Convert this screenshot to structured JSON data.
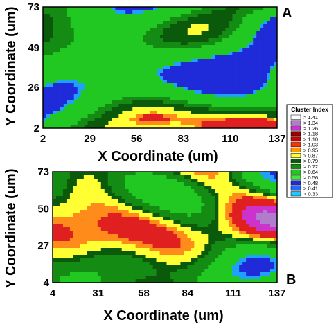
{
  "chart_data": [
    {
      "type": "heatmap",
      "panel_label": "A",
      "xlabel": "X Coordinate (um)",
      "ylabel": "Y Coordinate (um)",
      "xticks": [
        2,
        29,
        56,
        83,
        110,
        137
      ],
      "yticks": [
        2,
        26,
        49,
        73
      ],
      "xlim": [
        2,
        137
      ],
      "ylim": [
        2,
        73
      ],
      "palette": [
        "#1f2bd8",
        "#1fa0ff",
        "#22c822",
        "#148c14",
        "#0b5a0b",
        "#ffff33",
        "#ff8c1a",
        "#e02020"
      ],
      "weights": [
        0.18,
        0.03,
        0.47,
        0.12,
        0.1,
        0.05,
        0.02,
        0.03
      ]
    },
    {
      "type": "heatmap",
      "panel_label": "B",
      "xlabel": "X Coordinate (um)",
      "ylabel": "Y Coordinate (um)",
      "xticks": [
        4,
        31,
        58,
        84,
        111,
        137
      ],
      "yticks": [
        4,
        27,
        50,
        73
      ],
      "xlim": [
        4,
        137
      ],
      "ylim": [
        4,
        73
      ],
      "palette": [
        "#1f2bd8",
        "#1fa0ff",
        "#22c822",
        "#148c14",
        "#0b5a0b",
        "#ffff33",
        "#ff8c1a",
        "#e02020",
        "#cc33cc",
        "#b07dcc"
      ],
      "weights": [
        0.02,
        0.02,
        0.18,
        0.22,
        0.12,
        0.18,
        0.12,
        0.11,
        0.02,
        0.01
      ]
    }
  ],
  "legend": {
    "title": "Cluster Index",
    "entries": [
      {
        "label": "> 1.41",
        "color": "#ffffff"
      },
      {
        "label": "> 1.34",
        "color": "#b07dcc"
      },
      {
        "label": "> 1.26",
        "color": "#cc33cc"
      },
      {
        "label": "> 1.18",
        "color": "#990000"
      },
      {
        "label": "> 1.10",
        "color": "#cc0000"
      },
      {
        "label": "> 1.03",
        "color": "#ff3300"
      },
      {
        "label": "> 0.95",
        "color": "#ff9900"
      },
      {
        "label": "> 0.87",
        "color": "#ffff33"
      },
      {
        "label": "> 0.79",
        "color": "#0b5a0b"
      },
      {
        "label": "> 0.72",
        "color": "#148c14"
      },
      {
        "label": "> 0.64",
        "color": "#22c822"
      },
      {
        "label": "> 0.56",
        "color": "#33ee33"
      },
      {
        "label": "> 0.48",
        "color": "#1f2bd8"
      },
      {
        "label": "> 0.41",
        "color": "#1f6cff"
      },
      {
        "label": "> 0.33",
        "color": "#1fc8ff"
      }
    ]
  }
}
